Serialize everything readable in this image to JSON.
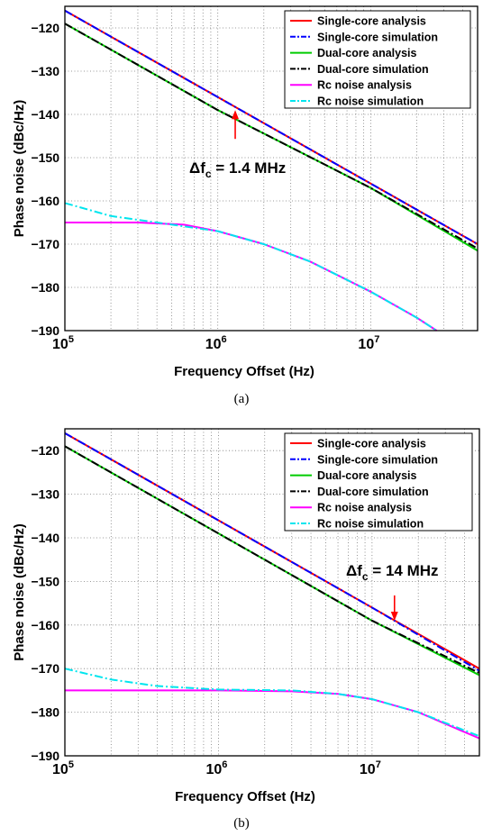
{
  "chart_data": [
    {
      "type": "line",
      "panel": "a",
      "caption": "(a)",
      "xlabel": "Frequency Offset (Hz)",
      "ylabel": "Phase noise (dBc/Hz)",
      "x_scale": "log",
      "xlim": [
        100000,
        50000000
      ],
      "ylim": [
        -190,
        -115
      ],
      "y_ticks": [
        -120,
        -130,
        -140,
        -150,
        -160,
        -170,
        -180,
        -190
      ],
      "x_ticks": [
        {
          "base": "10",
          "exp": "5"
        },
        {
          "base": "10",
          "exp": "6"
        },
        {
          "base": "10",
          "exp": "7"
        }
      ],
      "grid": true,
      "legend_position": "top-right",
      "annotation": {
        "delta": "Δf",
        "sub": "c",
        "rest": " = 1.4 MHz",
        "arrow_x": 1300000,
        "arrow_y": -139
      },
      "series": [
        {
          "name": "Single-core analysis",
          "color": "#ff0000",
          "dash": "solid",
          "x": [
            100000,
            1000000,
            10000000,
            50000000
          ],
          "y": [
            -116,
            -136,
            -156,
            -170
          ]
        },
        {
          "name": "Single-core simulation",
          "color": "#0000ff",
          "dash": "dashdot",
          "x": [
            100000,
            1000000,
            10000000,
            50000000
          ],
          "y": [
            -116,
            -136,
            -156,
            -170
          ]
        },
        {
          "name": "Dual-core analysis",
          "color": "#00cc00",
          "dash": "solid",
          "x": [
            100000,
            1000000,
            10000000,
            50000000
          ],
          "y": [
            -119,
            -139,
            -157,
            -171.5
          ]
        },
        {
          "name": "Dual-core simulation",
          "color": "#000000",
          "dash": "dashdot",
          "x": [
            100000,
            1000000,
            10000000,
            50000000
          ],
          "y": [
            -119,
            -139,
            -157,
            -171
          ]
        },
        {
          "name": "Rc noise analysis",
          "color": "#ff00ff",
          "dash": "solid",
          "x": [
            100000,
            300000,
            600000,
            1000000,
            2000000,
            4000000,
            10000000,
            20000000,
            27000000
          ],
          "y": [
            -165,
            -165,
            -165.5,
            -167,
            -170,
            -174,
            -181,
            -187,
            -190
          ]
        },
        {
          "name": "Rc noise simulation",
          "color": "#00e5ee",
          "dash": "dashdot",
          "x": [
            100000,
            200000,
            400000,
            1000000,
            2000000,
            4000000,
            10000000,
            20000000,
            27000000
          ],
          "y": [
            -160.5,
            -163.5,
            -165,
            -167,
            -170,
            -174,
            -181,
            -187,
            -190
          ]
        }
      ]
    },
    {
      "type": "line",
      "panel": "b",
      "caption": "(b)",
      "xlabel": "Frequency Offset (Hz)",
      "ylabel": "Phase noise (dBc/Hz)",
      "x_scale": "log",
      "xlim": [
        100000,
        50000000
      ],
      "ylim": [
        -190,
        -115
      ],
      "y_ticks": [
        -120,
        -130,
        -140,
        -150,
        -160,
        -170,
        -180,
        -190
      ],
      "x_ticks": [
        {
          "base": "10",
          "exp": "5"
        },
        {
          "base": "10",
          "exp": "6"
        },
        {
          "base": "10",
          "exp": "7"
        }
      ],
      "grid": true,
      "legend_position": "top-right",
      "annotation": {
        "delta": "Δf",
        "sub": "c",
        "rest": " = 14 MHz",
        "arrow_x": 14000000,
        "arrow_y": -159
      },
      "series": [
        {
          "name": "Single-core analysis",
          "color": "#ff0000",
          "dash": "solid",
          "x": [
            100000,
            1000000,
            10000000,
            50000000
          ],
          "y": [
            -116,
            -136,
            -156,
            -170
          ]
        },
        {
          "name": "Single-core simulation",
          "color": "#0000ff",
          "dash": "dashdot",
          "x": [
            100000,
            1000000,
            10000000,
            50000000
          ],
          "y": [
            -116,
            -136,
            -156,
            -170.5
          ]
        },
        {
          "name": "Dual-core analysis",
          "color": "#00cc00",
          "dash": "solid",
          "x": [
            100000,
            1000000,
            10000000,
            50000000
          ],
          "y": [
            -119,
            -139,
            -159,
            -171.5
          ]
        },
        {
          "name": "Dual-core simulation",
          "color": "#000000",
          "dash": "dashdot",
          "x": [
            100000,
            1000000,
            10000000,
            50000000
          ],
          "y": [
            -119,
            -139,
            -159,
            -171
          ]
        },
        {
          "name": "Rc noise analysis",
          "color": "#ff00ff",
          "dash": "solid",
          "x": [
            100000,
            1000000,
            3000000,
            6000000,
            10000000,
            20000000,
            50000000
          ],
          "y": [
            -175,
            -175,
            -175.2,
            -175.8,
            -177,
            -180,
            -186
          ]
        },
        {
          "name": "Rc noise simulation",
          "color": "#00e5ee",
          "dash": "dashdot",
          "x": [
            100000,
            200000,
            400000,
            1000000,
            3000000,
            6000000,
            10000000,
            20000000,
            50000000
          ],
          "y": [
            -170,
            -172.5,
            -174,
            -174.8,
            -175,
            -175.8,
            -177,
            -180,
            -185.5
          ]
        }
      ]
    }
  ]
}
